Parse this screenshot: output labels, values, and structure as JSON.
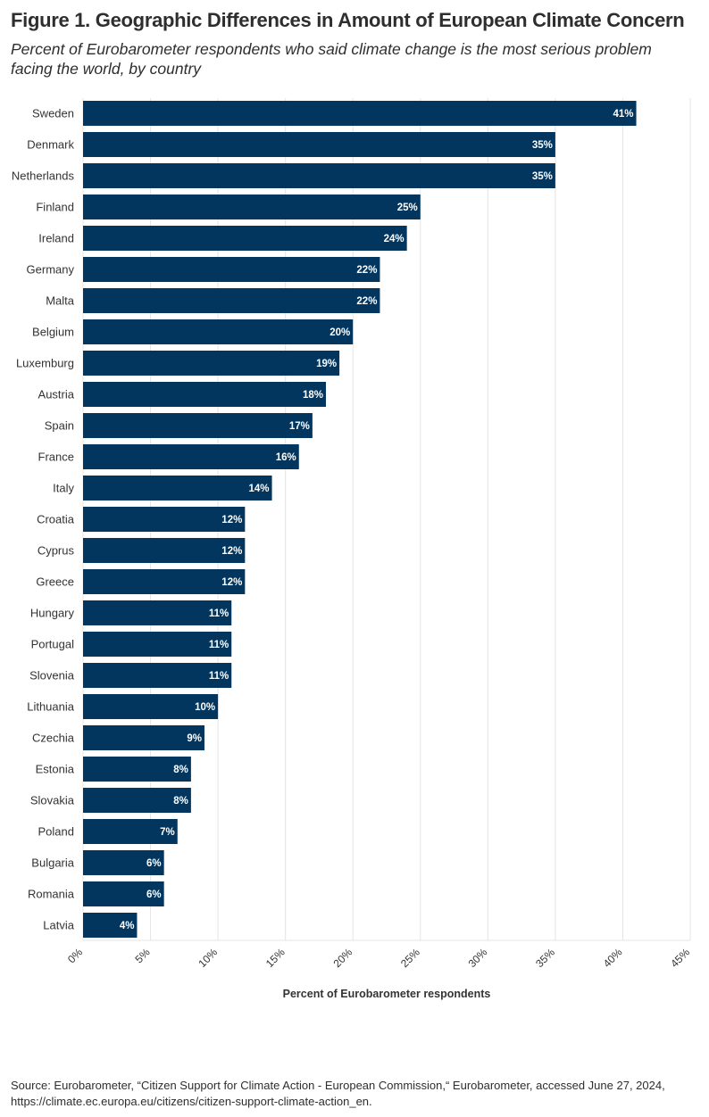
{
  "title": "Figure 1. Geographic Differences in Amount of European Climate Concern",
  "subtitle": "Percent of Eurobarometer respondents who said climate change is the most serious problem facing the world, by country",
  "source_line1": "Source: Eurobarometer, “Citizen Support for Climate Action - European Commission,“ Eurobarometer, accessed June 27, 2024,",
  "source_line2": "https://climate.ec.europa.eu/citizens/citizen-support-climate-action_en.",
  "colors": {
    "bar": "#02365f",
    "grid": "#e4e4e4",
    "label": "#ffffff",
    "text": "#333333"
  },
  "chart_data": {
    "type": "bar",
    "orientation": "horizontal",
    "categories": [
      "Sweden",
      "Denmark",
      "Netherlands",
      "Finland",
      "Ireland",
      "Germany",
      "Malta",
      "Belgium",
      "Luxemburg",
      "Austria",
      "Spain",
      "France",
      "Italy",
      "Croatia",
      "Cyprus",
      "Greece",
      "Hungary",
      "Portugal",
      "Slovenia",
      "Lithuania",
      "Czechia",
      "Estonia",
      "Slovakia",
      "Poland",
      "Bulgaria",
      "Romania",
      "Latvia"
    ],
    "values": [
      41,
      35,
      35,
      25,
      24,
      22,
      22,
      20,
      19,
      18,
      17,
      16,
      14,
      12,
      12,
      12,
      11,
      11,
      11,
      10,
      9,
      8,
      8,
      7,
      6,
      6,
      4
    ],
    "data_labels": [
      "41%",
      "35%",
      "35%",
      "25%",
      "24%",
      "22%",
      "22%",
      "20%",
      "19%",
      "18%",
      "17%",
      "16%",
      "14%",
      "12%",
      "12%",
      "12%",
      "11%",
      "11%",
      "11%",
      "10%",
      "9%",
      "8%",
      "8%",
      "7%",
      "6%",
      "6%",
      "4%"
    ],
    "xlim": [
      0,
      45
    ],
    "x_ticks": [
      0,
      5,
      10,
      15,
      20,
      25,
      30,
      35,
      40,
      45
    ],
    "x_tick_labels": [
      "0%",
      "5%",
      "10%",
      "15%",
      "20%",
      "25%",
      "30%",
      "35%",
      "40%",
      "45%"
    ],
    "xlabel": "Percent of Eurobarometer respondents",
    "ylabel": "",
    "grid": true,
    "legend": "none"
  }
}
